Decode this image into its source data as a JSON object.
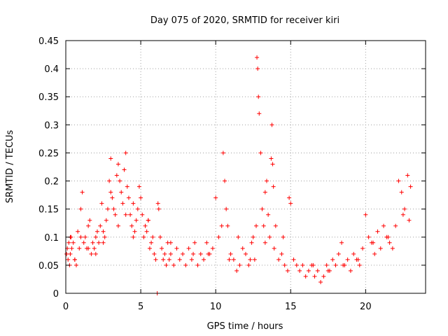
{
  "chart_data": {
    "type": "scatter",
    "title": "Day 075 of 2020, SRMTID for receiver kiri",
    "xlabel": "GPS time / hours",
    "ylabel": "SRMTID / TECUs",
    "xlim": [
      0,
      24
    ],
    "ylim": [
      0,
      0.45
    ],
    "xticks": [
      0,
      5,
      10,
      15,
      20
    ],
    "yticks": [
      0,
      0.05,
      0.1,
      0.15,
      0.2,
      0.25,
      0.3,
      0.35,
      0.4,
      0.45
    ],
    "xtick_labels": [
      "0",
      "5",
      "10",
      "15",
      "20"
    ],
    "ytick_labels": [
      "0",
      "0.05",
      "0.1",
      "0.15",
      "0.2",
      "0.25",
      "0.3",
      "0.35",
      "0.4",
      "0.45"
    ],
    "grid": true,
    "marker": "+",
    "color": "#ff0000",
    "series": [
      {
        "x": [
          0.05,
          0.1,
          0.15,
          0.2,
          0.25,
          0.3,
          0.35,
          0.4,
          0.5,
          0.6,
          0.7,
          0.8,
          0.9,
          1.0,
          1.1,
          1.2,
          1.3,
          1.4,
          1.5,
          1.6,
          1.7,
          1.8,
          1.9,
          2.0,
          2.1,
          2.2,
          2.3,
          2.4,
          2.5,
          2.6,
          2.7,
          2.8,
          2.9,
          3.0,
          3.0,
          3.1,
          3.2,
          3.3,
          3.4,
          3.5,
          3.6,
          3.7,
          3.8,
          3.9,
          4.0,
          4.1,
          4.2,
          4.3,
          4.4,
          4.5,
          4.6,
          4.7,
          4.8,
          4.9,
          5.0,
          5.1,
          5.2,
          5.3,
          5.4,
          5.5,
          5.6,
          5.7,
          5.8,
          5.9,
          6.0,
          6.1,
          6.15,
          6.2,
          6.3,
          6.4,
          6.5,
          6.6,
          6.7,
          6.8,
          6.9,
          7.0,
          7.2,
          7.4,
          7.6,
          7.8,
          8.0,
          8.2,
          8.4,
          8.6,
          8.8,
          9.0,
          9.2,
          9.4,
          9.6,
          9.8,
          10.0,
          10.2,
          10.4,
          10.5,
          10.6,
          10.7,
          10.8,
          11.0,
          11.2,
          11.4,
          11.6,
          11.8,
          12.0,
          12.2,
          12.4,
          12.5,
          12.6,
          12.7,
          12.75,
          12.8,
          12.85,
          12.9,
          13.0,
          13.1,
          13.2,
          13.3,
          13.4,
          13.5,
          13.6,
          13.7,
          13.75,
          13.8,
          13.85,
          13.9,
          14.0,
          14.2,
          14.4,
          14.6,
          14.8,
          14.9,
          15.0,
          15.2,
          15.4,
          15.6,
          15.8,
          16.0,
          16.2,
          16.4,
          16.6,
          16.8,
          17.0,
          17.2,
          17.4,
          17.6,
          17.8,
          18.0,
          18.2,
          18.4,
          18.6,
          18.8,
          19.0,
          19.2,
          19.4,
          19.6,
          19.8,
          20.0,
          20.2,
          20.4,
          20.6,
          20.8,
          21.0,
          21.2,
          21.4,
          21.6,
          21.8,
          22.0,
          22.2,
          22.4,
          22.6,
          22.8,
          22.9,
          23.0,
          0.3,
          0.6,
          1.0,
          1.5,
          2.0,
          2.5,
          3.5,
          4.0,
          4.5,
          5.5,
          7.0,
          8.5,
          9.5,
          10.9,
          11.5,
          12.3,
          13.3,
          14.5,
          16.5,
          17.5,
          18.5,
          19.5,
          20.5,
          21.5,
          22.5
        ],
        "y": [
          0.07,
          0.08,
          0.06,
          0.09,
          0.05,
          0.07,
          0.1,
          0.08,
          0.09,
          0.06,
          0.05,
          0.11,
          0.08,
          0.15,
          0.18,
          0.09,
          0.1,
          0.08,
          0.12,
          0.13,
          0.07,
          0.09,
          0.08,
          0.1,
          0.11,
          0.09,
          0.12,
          0.16,
          0.11,
          0.1,
          0.13,
          0.15,
          0.2,
          0.24,
          0.18,
          0.17,
          0.15,
          0.14,
          0.21,
          0.23,
          0.2,
          0.18,
          0.16,
          0.22,
          0.25,
          0.19,
          0.17,
          0.14,
          0.12,
          0.16,
          0.11,
          0.13,
          0.15,
          0.19,
          0.17,
          0.14,
          0.1,
          0.12,
          0.11,
          0.13,
          0.08,
          0.09,
          0.1,
          0.07,
          0.06,
          0.0,
          0.16,
          0.15,
          0.1,
          0.08,
          0.06,
          0.07,
          0.05,
          0.09,
          0.06,
          0.07,
          0.05,
          0.08,
          0.06,
          0.07,
          0.05,
          0.08,
          0.06,
          0.09,
          0.05,
          0.07,
          0.06,
          0.09,
          0.07,
          0.08,
          0.17,
          0.1,
          0.12,
          0.25,
          0.2,
          0.15,
          0.12,
          0.07,
          0.06,
          0.04,
          0.05,
          0.08,
          0.07,
          0.05,
          0.09,
          0.1,
          0.06,
          0.12,
          0.42,
          0.4,
          0.35,
          0.32,
          0.25,
          0.15,
          0.12,
          0.18,
          0.2,
          0.14,
          0.1,
          0.24,
          0.3,
          0.23,
          0.19,
          0.08,
          0.12,
          0.06,
          0.07,
          0.05,
          0.04,
          0.17,
          0.16,
          0.06,
          0.05,
          0.04,
          0.05,
          0.03,
          0.04,
          0.05,
          0.03,
          0.04,
          0.02,
          0.03,
          0.05,
          0.04,
          0.06,
          0.05,
          0.07,
          0.09,
          0.05,
          0.06,
          0.04,
          0.07,
          0.06,
          0.05,
          0.08,
          0.14,
          0.1,
          0.09,
          0.07,
          0.11,
          0.08,
          0.12,
          0.1,
          0.09,
          0.08,
          0.12,
          0.2,
          0.18,
          0.15,
          0.21,
          0.13,
          0.19,
          0.1,
          0.06,
          0.1,
          0.08,
          0.07,
          0.09,
          0.12,
          0.14,
          0.1,
          0.13,
          0.09,
          0.07,
          0.07,
          0.06,
          0.1,
          0.06,
          0.09,
          0.1,
          0.05,
          0.04,
          0.05,
          0.06,
          0.09,
          0.1,
          0.14
        ]
      }
    ]
  }
}
